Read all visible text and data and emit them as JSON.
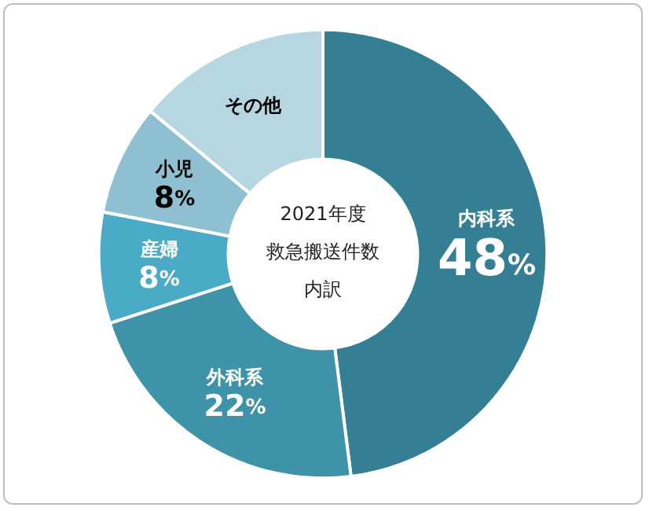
{
  "chart_data": {
    "type": "donut",
    "title": "2021年度",
    "subtitle": "救急搬送件数",
    "annotations": [
      "内訳"
    ],
    "categories": [
      "内科系",
      "外科系",
      "産婦",
      "小児",
      "その他"
    ],
    "values": [
      48,
      22,
      8,
      8,
      14
    ],
    "colors": [
      "#357f94",
      "#3e93a8",
      "#4aabc6",
      "#8fc0d1",
      "#b6d6e1"
    ],
    "value_labels": [
      "48%",
      "22%",
      "8%",
      "8%",
      null
    ],
    "legend": false
  }
}
